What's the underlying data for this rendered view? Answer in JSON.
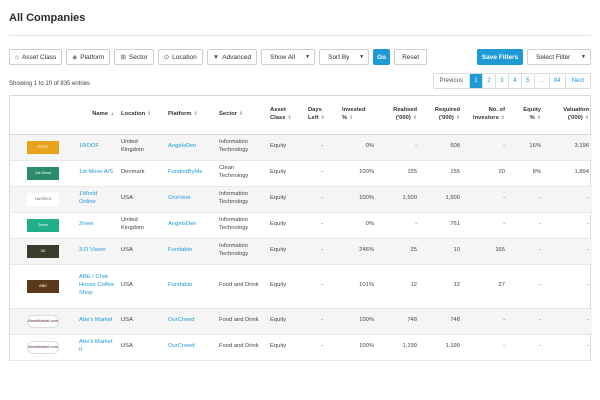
{
  "page": {
    "title": "All Companies"
  },
  "toolbar": {
    "asset_class": "Asset Class",
    "platform": "Platform",
    "sector": "Sector",
    "location": "Location",
    "advanced": "Advanced",
    "show_all": "Show All",
    "sort_by": "Sort By",
    "go": "Go",
    "reset": "Reset",
    "save_filters": "Save Filters",
    "select_filter": "Select Filter"
  },
  "entries_info": "Showing 1 to 10 of 835 entries",
  "pagination": {
    "previous": "Previous",
    "pages": [
      "1",
      "2",
      "3",
      "4",
      "5",
      "…",
      "84"
    ],
    "active_page": "1",
    "next": "Next"
  },
  "table": {
    "columns": [
      {
        "key": "logo",
        "label": ""
      },
      {
        "key": "name",
        "label": "Name"
      },
      {
        "key": "location",
        "label": "Location"
      },
      {
        "key": "platform",
        "label": "Platform"
      },
      {
        "key": "sector",
        "label": "Sector"
      },
      {
        "key": "asset_class",
        "label": "Asset Class"
      },
      {
        "key": "days_left",
        "label": "Days Left"
      },
      {
        "key": "invested",
        "label": "Invested %"
      },
      {
        "key": "realised",
        "label": "Realised ('000)"
      },
      {
        "key": "required",
        "label": "Required ('000)"
      },
      {
        "key": "investors",
        "label": "No. of Investors"
      },
      {
        "key": "equity",
        "label": "Equity %"
      },
      {
        "key": "valuation",
        "label": "Valuation ('000)"
      }
    ],
    "rows": [
      {
        "logo": "ROOF",
        "logo_color": "#e8a21c",
        "name": "1ROOF",
        "location": "United Kingdom",
        "platform": "AngelsDen",
        "sector": "Information Technology",
        "asset_class": "Equity",
        "days_left": "-",
        "invested": "0%",
        "realised": "-",
        "required": "608",
        "investors": "-",
        "equity": "16%",
        "valuation": "3,196"
      },
      {
        "logo": "1st Move",
        "logo_color": "#2a8c6a",
        "name": "1st Move A/S",
        "location": "Denmark",
        "platform": "FundedByMe",
        "sector": "Clean Technology",
        "asset_class": "Equity",
        "days_left": "-",
        "invested": "100%",
        "realised": "155",
        "required": "155",
        "investors": "20",
        "equity": "8%",
        "valuation": "1,894"
      },
      {
        "logo": "1WORLD",
        "logo_color": "#666666",
        "name": "1World Online",
        "location": "USA",
        "platform": "OneVest",
        "sector": "Information Technology",
        "asset_class": "Equity",
        "days_left": "-",
        "invested": "100%",
        "realised": "1,500",
        "required": "1,500",
        "investors": "-",
        "equity": "-",
        "valuation": "-"
      },
      {
        "logo": "2mee",
        "logo_color": "#22b08a",
        "name": "2mee",
        "location": "United Kingdom",
        "platform": "AngelsDen",
        "sector": "Information Technology",
        "asset_class": "Equity",
        "days_left": "-",
        "invested": "0%",
        "realised": "-",
        "required": "761",
        "investors": "-",
        "equity": "-",
        "valuation": "-"
      },
      {
        "logo": "3D",
        "logo_color": "#3b3b2a",
        "name": "3-D Vision",
        "location": "USA",
        "platform": "Fundable",
        "sector": "Information Technology",
        "asset_class": "Equity",
        "days_left": "-",
        "invested": "246%",
        "realised": "25",
        "required": "10",
        "investors": "165",
        "equity": "-",
        "valuation": "-"
      },
      {
        "logo": "ABE",
        "logo_color": "#5a3a1a",
        "name": "ABE / Chat House Coffee Shop",
        "location": "USA",
        "platform": "Fundable",
        "sector": "Food and Drink",
        "asset_class": "Equity",
        "days_left": "-",
        "invested": "101%",
        "realised": "12",
        "required": "12",
        "investors": "27",
        "equity": "-",
        "valuation": "-"
      },
      {
        "logo": "AbesMarket.com",
        "logo_color": "#5a2a2a",
        "name": "Abe's Market",
        "location": "USA",
        "platform": "OurCrowd",
        "sector": "Food and Drink",
        "asset_class": "Equity",
        "days_left": "-",
        "invested": "100%",
        "realised": "748",
        "required": "748",
        "investors": "-",
        "equity": "-",
        "valuation": "-"
      },
      {
        "logo": "AbesMarket.com",
        "logo_color": "#5a2a2a",
        "name": "Abe's Market II",
        "location": "USA",
        "platform": "OurCrowd",
        "sector": "Food and Drink",
        "asset_class": "Equity",
        "days_left": "-",
        "invested": "100%",
        "realised": "1,199",
        "required": "1,199",
        "investors": "-",
        "equity": "-",
        "valuation": "-"
      }
    ]
  },
  "colors": {
    "accent": "#1e9bd7"
  },
  "icons": {
    "asset_class": "bank-icon",
    "platform": "tag-icon",
    "sector": "sector-icon",
    "location": "map-pin-icon",
    "advanced": "filter-icon"
  }
}
